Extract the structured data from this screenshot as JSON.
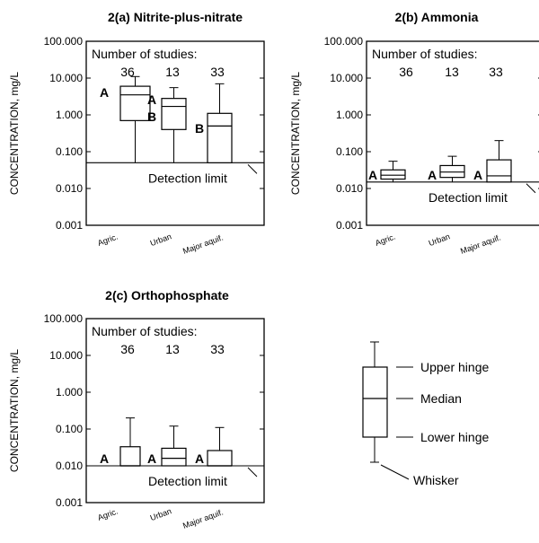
{
  "chart_data": [
    {
      "type": "box",
      "title": "2(a) Nitrite-plus-nitrate",
      "ylabel": "CONCENTRATION, mg/L",
      "yscale": "log",
      "ylim": [
        0.001,
        100
      ],
      "yticks": [
        "0.001",
        "0.010",
        "0.100",
        "1.000",
        "10.000",
        "100.000"
      ],
      "categories": [
        "Agric.",
        "Urban",
        "Major aquif."
      ],
      "studies_header": "Number of studies:",
      "studies": [
        "36",
        "13",
        "33"
      ],
      "groups": [
        "A",
        "A\nB",
        "B"
      ],
      "detection_limit": 0.05,
      "detection_label": "Detection limit",
      "boxes": [
        {
          "whisker_low": 0.05,
          "lower_hinge": 0.7,
          "median": 3.5,
          "upper_hinge": 6.0,
          "whisker_high": 11.0
        },
        {
          "whisker_low": 0.05,
          "lower_hinge": 0.4,
          "median": 1.7,
          "upper_hinge": 2.8,
          "whisker_high": 5.5
        },
        {
          "whisker_low": 0.05,
          "lower_hinge": 0.05,
          "median": 0.5,
          "upper_hinge": 1.1,
          "whisker_high": 7.0
        }
      ]
    },
    {
      "type": "box",
      "title": "2(b) Ammonia",
      "ylabel": "CONCENTRATION, mg/L",
      "yscale": "log",
      "ylim": [
        0.001,
        100
      ],
      "yticks": [
        "0.001",
        "0.010",
        "0.100",
        "1.000",
        "10.000",
        "100.000"
      ],
      "categories": [
        "Agric.",
        "Urban",
        "Major aquif."
      ],
      "studies_header": "Number of studies:",
      "studies": [
        "36",
        "13",
        "33"
      ],
      "groups": [
        "A",
        "A",
        "A"
      ],
      "detection_limit": 0.015,
      "detection_label": "Detection limit",
      "boxes": [
        {
          "whisker_low": 0.015,
          "lower_hinge": 0.018,
          "median": 0.023,
          "upper_hinge": 0.032,
          "whisker_high": 0.055
        },
        {
          "whisker_low": 0.015,
          "lower_hinge": 0.02,
          "median": 0.028,
          "upper_hinge": 0.042,
          "whisker_high": 0.075
        },
        {
          "whisker_low": 0.015,
          "lower_hinge": 0.015,
          "median": 0.022,
          "upper_hinge": 0.06,
          "whisker_high": 0.2
        }
      ]
    },
    {
      "type": "box",
      "title": "2(c) Orthophosphate",
      "ylabel": "CONCENTRATION, mg/L",
      "yscale": "log",
      "ylim": [
        0.001,
        100
      ],
      "yticks": [
        "0.001",
        "0.010",
        "0.100",
        "1.000",
        "10.000",
        "100.000"
      ],
      "categories": [
        "Agric.",
        "Urban",
        "Major aquif."
      ],
      "studies_header": "Number of studies:",
      "studies": [
        "36",
        "13",
        "33"
      ],
      "groups": [
        "A",
        "A",
        "A"
      ],
      "detection_limit": 0.01,
      "detection_label": "Detection limit",
      "boxes": [
        {
          "whisker_low": 0.01,
          "lower_hinge": 0.01,
          "median": 0.01,
          "upper_hinge": 0.033,
          "whisker_high": 0.2
        },
        {
          "whisker_low": 0.01,
          "lower_hinge": 0.01,
          "median": 0.016,
          "upper_hinge": 0.03,
          "whisker_high": 0.12
        },
        {
          "whisker_low": 0.01,
          "lower_hinge": 0.01,
          "median": 0.01,
          "upper_hinge": 0.026,
          "whisker_high": 0.11
        }
      ]
    }
  ],
  "legend": {
    "upper_hinge": "Upper hinge",
    "median": "Median",
    "lower_hinge": "Lower hinge",
    "whisker": "Whisker"
  }
}
